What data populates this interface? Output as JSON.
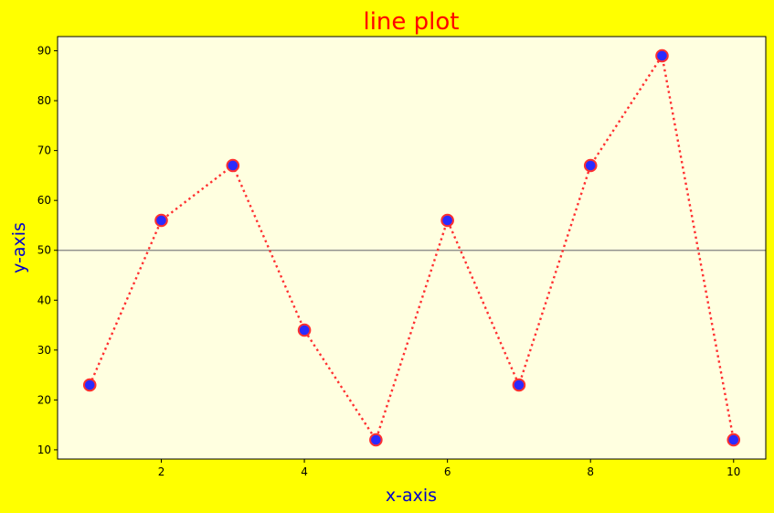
{
  "chart_data": {
    "type": "line",
    "title": "line plot",
    "xlabel": "x-axis",
    "ylabel": "y-axis",
    "x": [
      1,
      2,
      3,
      4,
      5,
      6,
      7,
      8,
      9,
      10
    ],
    "series": [
      {
        "values": [
          23,
          56,
          67,
          34,
          12,
          56,
          23,
          67,
          89,
          12
        ],
        "line_color": "#ff3030",
        "line_style": "dotted",
        "marker": "circle",
        "marker_face_color": "#2b2bff",
        "marker_edge_color": "#ff3030"
      }
    ],
    "xlim": [
      0.55,
      10.45
    ],
    "ylim": [
      8.15,
      92.85
    ],
    "xticks": [
      2,
      4,
      6,
      8,
      10
    ],
    "yticks": [
      10,
      20,
      30,
      40,
      50,
      60,
      70,
      80,
      90
    ],
    "reference_line": {
      "orientation": "horizontal",
      "y": 50,
      "color": "#808080"
    },
    "grid": false,
    "legend": "none",
    "colors": {
      "figure_background": "#ffff00",
      "plot_background": "#ffffe0",
      "title": "#ff0000",
      "axis_labels": "#0000cd"
    }
  }
}
